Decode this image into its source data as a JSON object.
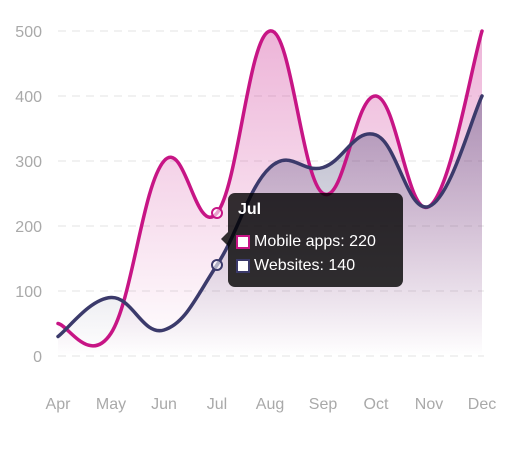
{
  "chart_data": {
    "type": "line",
    "categories": [
      "Apr",
      "May",
      "Jun",
      "Jul",
      "Aug",
      "Sep",
      "Oct",
      "Nov",
      "Dec"
    ],
    "series": [
      {
        "name": "Mobile apps",
        "values": [
          50,
          35,
          300,
          220,
          500,
          250,
          400,
          230,
          500
        ],
        "color": "#c71585"
      },
      {
        "name": "Websites",
        "values": [
          30,
          90,
          40,
          140,
          290,
          290,
          340,
          230,
          400
        ],
        "color": "#3b3a6b"
      }
    ],
    "y_ticks": [
      "0",
      "100",
      "200",
      "300",
      "400",
      "500"
    ],
    "ylim": [
      0,
      500
    ],
    "grid": "horizontal dashed",
    "smooth": true,
    "fill": "gradient area under each series",
    "title": "",
    "xlabel": "",
    "ylabel": "",
    "tooltip": {
      "title": "Jul",
      "rows": [
        {
          "series": "Mobile apps",
          "text": "Mobile apps: 220"
        },
        {
          "series": "Websites",
          "text": "Websites: 140"
        }
      ]
    }
  }
}
